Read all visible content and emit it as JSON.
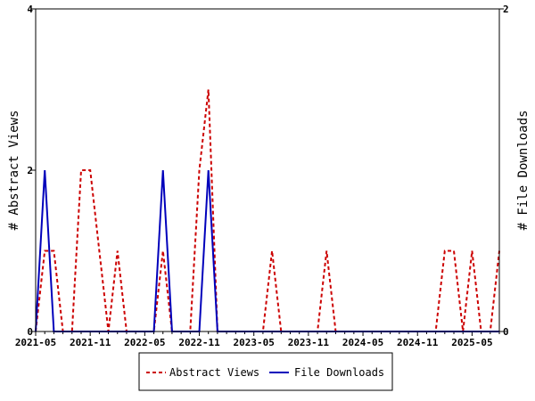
{
  "chart_data": {
    "type": "line",
    "x": [
      "2021-05",
      "2021-06",
      "2021-07",
      "2021-08",
      "2021-09",
      "2021-10",
      "2021-11",
      "2021-12",
      "2022-01",
      "2022-02",
      "2022-03",
      "2022-04",
      "2022-05",
      "2022-06",
      "2022-07",
      "2022-08",
      "2022-09",
      "2022-10",
      "2022-11",
      "2022-12",
      "2023-01",
      "2023-02",
      "2023-03",
      "2023-04",
      "2023-05",
      "2023-06",
      "2023-07",
      "2023-08",
      "2023-09",
      "2023-10",
      "2023-11",
      "2023-12",
      "2024-01",
      "2024-02",
      "2024-03",
      "2024-04",
      "2024-05",
      "2024-06",
      "2024-07",
      "2024-08",
      "2024-09",
      "2024-10",
      "2024-11",
      "2024-12",
      "2025-01",
      "2025-02",
      "2025-03",
      "2025-04",
      "2025-05",
      "2025-06",
      "2025-07",
      "2025-08"
    ],
    "x_tick_labels": [
      "2021-05",
      "2021-11",
      "2022-05",
      "2022-11",
      "2023-05",
      "2023-11",
      "2024-05",
      "2024-11",
      "2025-05"
    ],
    "series": [
      {
        "name": "Abstract Views",
        "axis": "left",
        "color": "#cc0000",
        "dash": true,
        "values": [
          0,
          1,
          1,
          0,
          0,
          2,
          2,
          1,
          0,
          1,
          0,
          0,
          0,
          0,
          1,
          0,
          0,
          0,
          2,
          3,
          0,
          0,
          0,
          0,
          0,
          0,
          1,
          0,
          0,
          0,
          0,
          0,
          1,
          0,
          0,
          0,
          0,
          0,
          0,
          0,
          0,
          0,
          0,
          0,
          0,
          1,
          1,
          0,
          1,
          0,
          0,
          1
        ]
      },
      {
        "name": "File Downloads",
        "axis": "right",
        "color": "#0000bb",
        "dash": false,
        "values": [
          0,
          1,
          0,
          0,
          0,
          0,
          0,
          0,
          0,
          0,
          0,
          0,
          0,
          0,
          1,
          0,
          0,
          0,
          0,
          1,
          0,
          0,
          0,
          0,
          0,
          0,
          0,
          0,
          0,
          0,
          0,
          0,
          0,
          0,
          0,
          0,
          0,
          0,
          0,
          0,
          0,
          0,
          0,
          0,
          0,
          0,
          0,
          0,
          0,
          0,
          0,
          0
        ]
      }
    ],
    "ylabel": "# Abstract Views",
    "ylabel_right": "# File Downloads",
    "ylim": [
      0,
      4
    ],
    "ylim_right": [
      0,
      2
    ],
    "yticks": [
      0,
      2,
      4
    ],
    "yticks_right": [
      0,
      2
    ],
    "grid": false,
    "legend_position": "bottom"
  }
}
